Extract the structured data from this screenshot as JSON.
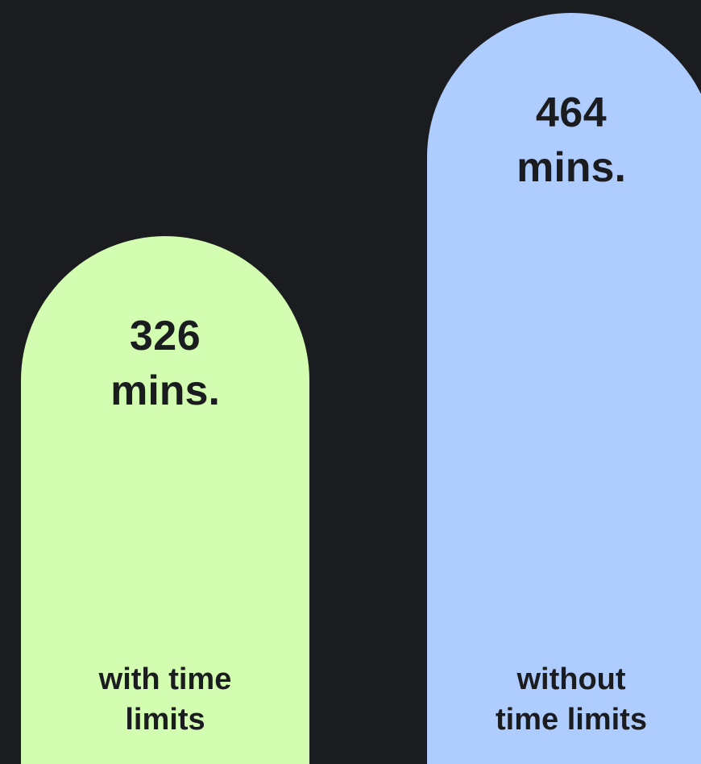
{
  "chart_data": {
    "type": "bar",
    "categories": [
      "with time limits",
      "without time limits"
    ],
    "category_lines": [
      [
        "with time",
        "limits"
      ],
      [
        "without",
        "time limits"
      ]
    ],
    "values": [
      326,
      464
    ],
    "value_labels": [
      {
        "number": "326",
        "unit": "mins."
      },
      {
        "number": "464",
        "unit": "mins."
      }
    ],
    "title": "",
    "xlabel": "",
    "ylabel": "",
    "ylim": [
      0,
      500
    ],
    "grid": false,
    "colors": [
      "#d3fdb0",
      "#aecdfe"
    ],
    "background": "#1b1c1f"
  }
}
